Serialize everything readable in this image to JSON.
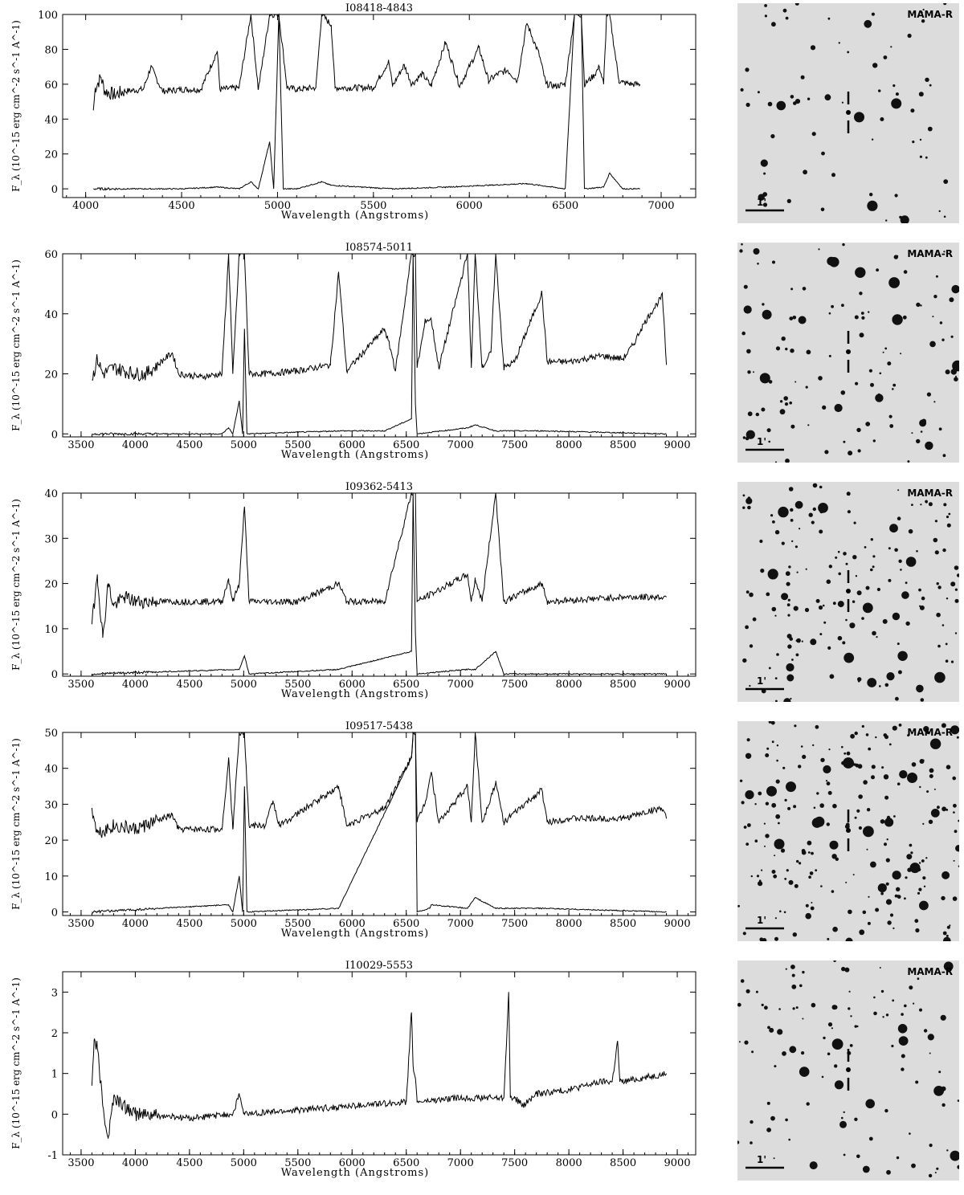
{
  "chart_data": [
    {
      "type": "line",
      "title": "I08418-4843",
      "xlabel": "Wavelength (Angstroms)",
      "ylabel": "F_λ (10^-15 erg cm^-2 s^-1 A^-1)",
      "xlim": [
        3880,
        7180
      ],
      "ylim": [
        -5,
        100
      ],
      "xticks": [
        4000,
        4500,
        5000,
        5500,
        6000,
        6500,
        7000
      ],
      "yticks": [
        0,
        20,
        40,
        60,
        80,
        100
      ],
      "series": [
        {
          "x": [
            4040,
            4050,
            4070,
            4080,
            4100,
            4150,
            4200,
            4300,
            4340,
            4400,
            4500,
            4600,
            4686,
            4700,
            4800,
            4861,
            4900,
            4959,
            5007,
            5050,
            5100,
            5200,
            5230,
            5280,
            5300,
            5400,
            5500,
            5580,
            5600,
            5660,
            5700,
            5755,
            5800,
            5876,
            5950,
            6050,
            6100,
            6150,
            6200,
            6250,
            6300,
            6364,
            6400,
            6450,
            6500,
            6548,
            6563,
            6584,
            6600,
            6650,
            6678,
            6700,
            6716,
            6731,
            6780,
            6800,
            6850,
            6890
          ],
          "y": [
            45,
            58,
            62,
            64,
            56,
            54,
            56,
            57,
            70,
            56,
            57,
            57,
            79,
            57,
            58,
            100,
            57,
            100,
            100,
            58,
            57,
            58,
            100,
            94,
            58,
            58,
            58,
            73,
            59,
            71,
            60,
            66,
            59,
            84,
            59,
            81,
            62,
            66,
            68,
            62,
            95,
            77,
            60,
            59,
            60,
            100,
            100,
            100,
            60,
            65,
            70,
            60,
            100,
            100,
            62,
            61,
            60,
            60
          ]
        },
        {
          "x": [
            4040,
            4500,
            4686,
            4800,
            4861,
            4900,
            4959,
            4980,
            5007,
            5030,
            5100,
            5230,
            5280,
            5600,
            5876,
            6300,
            6500,
            6548,
            6563,
            6584,
            6600,
            6700,
            6716,
            6731,
            6800,
            6890
          ],
          "y": [
            0,
            0,
            1,
            0,
            4,
            0,
            27,
            0,
            100,
            0,
            0,
            4,
            2,
            0,
            1,
            3,
            0,
            100,
            100,
            100,
            0,
            1,
            5,
            9,
            0,
            0
          ]
        }
      ]
    },
    {
      "type": "line",
      "title": "I08574-5011",
      "xlabel": "Wavelength (Angstroms)",
      "ylabel": "F_λ (10^-15 erg cm^-2 s^-1 A^-1)",
      "xlim": [
        3330,
        9170
      ],
      "ylim": [
        -1,
        60
      ],
      "xticks": [
        3500,
        4000,
        4500,
        5000,
        5500,
        6000,
        6500,
        7000,
        7500,
        8000,
        8500,
        9000
      ],
      "yticks": [
        0,
        20,
        40,
        60
      ],
      "series": [
        {
          "x": [
            3600,
            3650,
            3700,
            3800,
            3900,
            4000,
            4100,
            4340,
            4400,
            4600,
            4800,
            4861,
            4900,
            4959,
            5007,
            5050,
            5200,
            5500,
            5800,
            5876,
            5950,
            6300,
            6364,
            6400,
            6548,
            6563,
            6584,
            6600,
            6678,
            6716,
            6731,
            6800,
            7065,
            7100,
            7136,
            7200,
            7281,
            7325,
            7400,
            7500,
            7751,
            7800,
            8000,
            8300,
            8500,
            8600,
            8665,
            8750,
            8863,
            8900
          ],
          "y": [
            18,
            25,
            20,
            22,
            21,
            20,
            20,
            27,
            20,
            19,
            20,
            60,
            20,
            60,
            60,
            20,
            20,
            21,
            23,
            54,
            21,
            35,
            27,
            21,
            60,
            60,
            60,
            22,
            38,
            38,
            38,
            22,
            60,
            22,
            60,
            22,
            27,
            60,
            22,
            24,
            47,
            24,
            24,
            26,
            25,
            30,
            35,
            40,
            46,
            23
          ]
        },
        {
          "x": [
            3600,
            4800,
            4861,
            4900,
            4959,
            4990,
            5007,
            5030,
            5876,
            6300,
            6548,
            6563,
            6584,
            6600,
            7065,
            7136,
            7325,
            7751,
            8900
          ],
          "y": [
            0,
            0,
            2,
            0,
            11,
            0,
            35,
            0,
            1,
            1,
            5,
            60,
            10,
            0,
            2,
            3,
            1,
            1,
            0
          ]
        }
      ]
    },
    {
      "type": "line",
      "title": "I09362-5413",
      "xlabel": "Wavelength (Angstroms)",
      "ylabel": "F_λ (10^-15 erg cm^-2 s^-1 A^-1)",
      "xlim": [
        3330,
        9170
      ],
      "ylim": [
        -0.5,
        40
      ],
      "xticks": [
        3500,
        4000,
        4500,
        5000,
        5500,
        6000,
        6500,
        7000,
        7500,
        8000,
        8500,
        9000
      ],
      "yticks": [
        0,
        10,
        20,
        30,
        40
      ],
      "series": [
        {
          "x": [
            3600,
            3650,
            3700,
            3750,
            3800,
            3900,
            4000,
            4200,
            4500,
            4800,
            4861,
            4900,
            4959,
            5007,
            5050,
            5500,
            5876,
            5950,
            6300,
            6548,
            6563,
            6584,
            6600,
            7065,
            7100,
            7136,
            7200,
            7325,
            7400,
            7751,
            7800,
            8500,
            8900
          ],
          "y": [
            11,
            22,
            8,
            20,
            15,
            17,
            16,
            16,
            16,
            16,
            21,
            16,
            20,
            37,
            16,
            16,
            20,
            16,
            16,
            40,
            40,
            40,
            16,
            22,
            16,
            21,
            16,
            40,
            16,
            20,
            16,
            17,
            17
          ]
        },
        {
          "x": [
            3600,
            4959,
            5007,
            5050,
            5876,
            6548,
            6563,
            6584,
            6600,
            7065,
            7136,
            7325,
            7400,
            8900
          ],
          "y": [
            0,
            1,
            4,
            0,
            1,
            5,
            40,
            9,
            0,
            1,
            1,
            5,
            0,
            0
          ]
        }
      ]
    },
    {
      "type": "line",
      "title": "I09517-5438",
      "xlabel": "Wavelength (Angstroms)",
      "ylabel": "F_λ (10^-15 erg cm^-2 s^-1 A^-1)",
      "xlim": [
        3330,
        9170
      ],
      "ylim": [
        -1,
        50
      ],
      "xticks": [
        3500,
        4000,
        4500,
        5000,
        5500,
        6000,
        6500,
        7000,
        7500,
        8000,
        8500,
        9000
      ],
      "yticks": [
        0,
        10,
        20,
        30,
        40,
        50
      ],
      "series": [
        {
          "x": [
            3600,
            3650,
            3800,
            4000,
            4340,
            4400,
            4800,
            4861,
            4900,
            4959,
            5007,
            5050,
            5200,
            5270,
            5330,
            5876,
            5950,
            6300,
            6548,
            6563,
            6584,
            6600,
            6678,
            6716,
            6731,
            6800,
            7065,
            7100,
            7136,
            7200,
            7325,
            7400,
            7751,
            7800,
            8000,
            8500,
            8850,
            8900
          ],
          "y": [
            29,
            22,
            24,
            23,
            27,
            23,
            23,
            43,
            23,
            50,
            50,
            24,
            24,
            31,
            24,
            35,
            24,
            29,
            43,
            50,
            50,
            25,
            31,
            37,
            39,
            25,
            35,
            25,
            50,
            25,
            36,
            25,
            34,
            25,
            26,
            26,
            29,
            26
          ]
        },
        {
          "x": [
            3600,
            4861,
            4900,
            4959,
            4990,
            5007,
            5030,
            5876,
            6548,
            6563,
            6584,
            6600,
            6716,
            6731,
            7065,
            7136,
            7325,
            7751,
            8900
          ],
          "y": [
            0,
            2,
            0,
            10,
            0,
            35,
            0,
            1,
            43,
            50,
            50,
            0,
            1,
            2,
            1,
            4,
            1,
            1,
            0
          ]
        }
      ]
    },
    {
      "type": "line",
      "title": "I10029-5553",
      "xlabel": "Wavelength (Angstroms)",
      "ylabel": "F_λ (10^-15 erg cm^-2 s^-1 A^-1)",
      "xlim": [
        3330,
        9170
      ],
      "ylim": [
        -1,
        3.5
      ],
      "xticks": [
        3500,
        4000,
        4500,
        5000,
        5500,
        6000,
        6500,
        7000,
        7500,
        8000,
        8500,
        9000
      ],
      "yticks": [
        -1,
        0,
        1,
        2,
        3
      ],
      "series": [
        {
          "x": [
            3600,
            3620,
            3650,
            3700,
            3750,
            3800,
            4000,
            4500,
            4900,
            4959,
            5000,
            5500,
            6000,
            6500,
            6548,
            6563,
            6584,
            6600,
            7000,
            7400,
            7445,
            7460,
            7500,
            7580,
            7700,
            8000,
            8300,
            8400,
            8450,
            8470,
            8500,
            8700,
            8900
          ],
          "y": [
            0.7,
            1.8,
            1.6,
            0.2,
            -0.6,
            0.4,
            0.0,
            -0.1,
            0.0,
            0.5,
            0.0,
            0.1,
            0.2,
            0.3,
            2.5,
            1.2,
            0.9,
            0.3,
            0.4,
            0.4,
            3.0,
            0.4,
            0.4,
            0.2,
            0.5,
            0.6,
            0.8,
            0.8,
            1.8,
            0.8,
            0.8,
            0.9,
            1.0
          ]
        }
      ]
    }
  ],
  "images": [
    {
      "label": "MAMA-R",
      "scale_label": "1'"
    },
    {
      "label": "MAMA-R",
      "scale_label": "1'"
    },
    {
      "label": "MAMA-R",
      "scale_label": "1'"
    },
    {
      "label": "MAMA-R",
      "scale_label": "1'"
    },
    {
      "label": "MAMA-R",
      "scale_label": "1'"
    }
  ],
  "colors": {
    "line": "#000000",
    "background": "#ffffff",
    "sky": "#dcdcdc",
    "star": "#111111"
  }
}
